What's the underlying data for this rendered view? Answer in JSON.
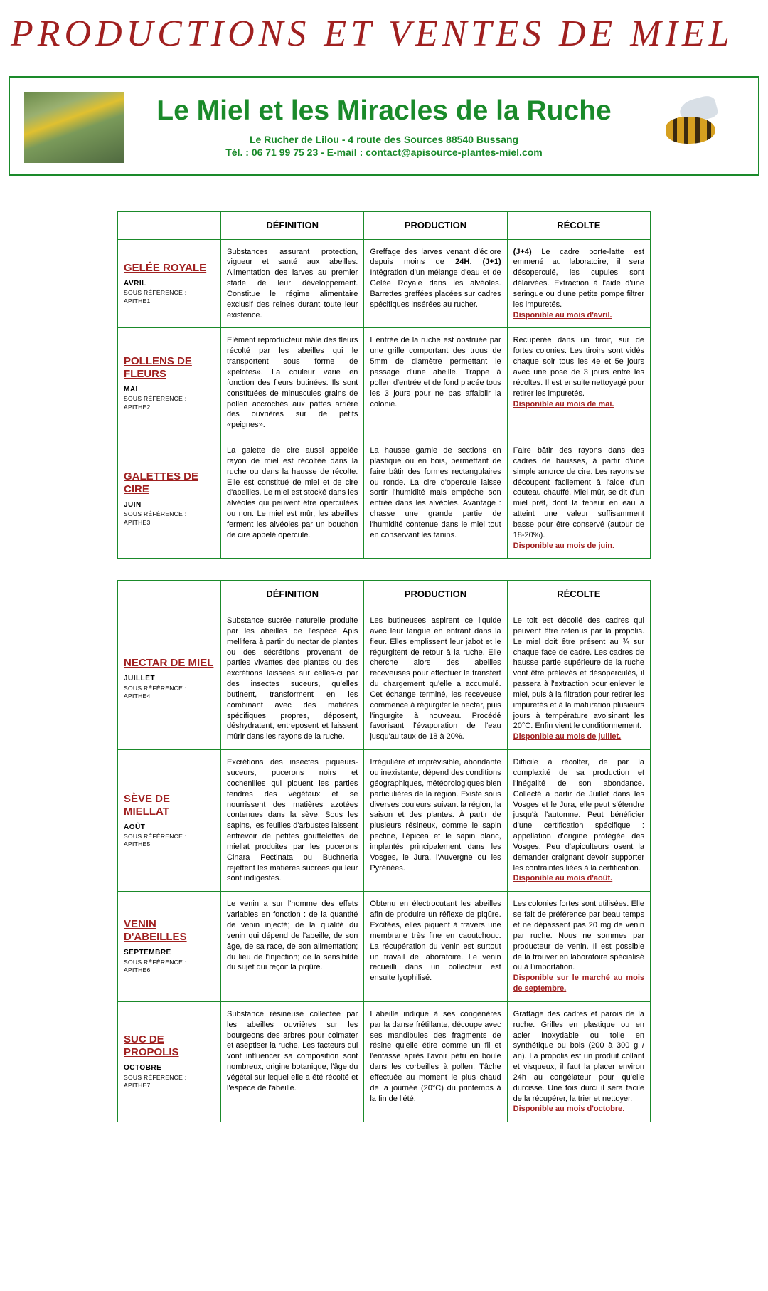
{
  "page": {
    "title": "PRODUCTIONS ET VENTES DE MIEL"
  },
  "banner": {
    "title": "Le Miel et les Miracles de la Ruche",
    "address": "Le Rucher de Lilou - 4 route des Sources 88540 Bussang",
    "tel_label": "Tél. : ",
    "tel": "06 71 99 75 23",
    "email_label": " - E-mail : ",
    "email": "contact@apisource-plantes-miel.com"
  },
  "colors": {
    "accent_green": "#1a8a2a",
    "accent_red": "#a02020"
  },
  "headers": {
    "definition": "DÉFINITION",
    "production": "PRODUCTION",
    "recolte": "RÉCOLTE"
  },
  "table1_rows": [
    {
      "name": "GELÉE ROYALE",
      "month": "AVRIL",
      "ref": "SOUS RÉFÉRENCE : APITHE1",
      "definition": "Substances assurant protection, vigueur et santé aux abeilles. Alimentation des larves au premier stade de leur développement. Constitue le régime alimentaire exclusif des reines durant toute leur existence.",
      "production": "Greffage des larves venant d'éclore depuis moins de <b>24H</b>. <b>(J+1)</b> Intégration d'un mélange d'eau et de Gelée Royale dans les alvéoles. Barrettes greffées placées sur cadres spécifiques insérées au rucher.",
      "recolte": "<b>(J+4)</b> Le cadre porte-latte est emmené au laboratoire, il sera désoperculé, les cupules sont délarvées. Extraction à l'aide d'une seringue ou d'une petite pompe filtrer les impuretés.",
      "avail": "Disponible au mois d'avril."
    },
    {
      "name": "POLLENS DE FLEURS",
      "month": "MAI",
      "ref": "SOUS RÉFÉRENCE : APITHE2",
      "definition": "Elément reproducteur mâle des fleurs récolté par les abeilles qui le transportent sous forme de «pelotes». La couleur varie en fonction des fleurs butinées. Ils sont constituées de minuscules grains de pollen accrochés aux pattes arrière des ouvrières sur de petits «peignes».",
      "production": "L'entrée de la ruche est obstruée par une grille comportant des trous de 5mm de diamètre permettant le passage d'une abeille. Trappe à pollen d'entrée et de fond placée tous les 3 jours pour ne pas affaiblir la colonie.",
      "recolte": "Récupérée dans un tiroir, sur de fortes colonies. Les tiroirs sont vidés chaque soir tous les 4e et 5e jours avec une pose de 3 jours entre les récoltes. Il est ensuite nettoyagé pour retirer les impuretés.",
      "avail": "Disponible au mois de mai."
    },
    {
      "name": "GALETTES DE CIRE",
      "month": "JUIN",
      "ref": "SOUS RÉFÉRENCE : APITHE3",
      "definition": "La galette de cire aussi appelée rayon de miel est récoltée dans la ruche ou dans la hausse de récolte. Elle est constitué de miel et de cire d'abeilles. Le miel est stocké dans les alvéoles qui peuvent être operculées ou non. Le miel est mûr, les abeilles ferment les alvéoles par un bouchon de cire appelé opercule.",
      "production": "La hausse garnie de sections en plastique ou en bois, permettant de faire bâtir des formes rectangulaires ou ronde. La cire d'opercule laisse sortir l'humidité mais empêche son entrée dans les alvéoles. Avantage : chasse une grande partie de l'humidité contenue dans le miel tout en conservant les tanins.",
      "recolte": "Faire bâtir des rayons dans des cadres de hausses, à partir d'une simple amorce de cire. Les rayons se découpent facilement à l'aide d'un couteau chauffé. Miel mûr, se dit d'un miel prêt, dont la teneur en eau a atteint une valeur suffisamment basse pour être conservé (autour de 18-20%).",
      "avail": "Disponible au mois de juin."
    }
  ],
  "table2_rows": [
    {
      "name": "NECTAR DE MIEL",
      "month": "JUILLET",
      "ref": "SOUS RÉFÉRENCE : APITHE4",
      "definition": "Substance sucrée naturelle produite par les abeilles de l'espèce Apis mellifera à partir du nectar de plantes ou des sécrétions provenant de parties vivantes des plantes ou des excrétions laissées sur celles-ci par des insectes suceurs, qu'elles butinent, transforment en les combinant avec des matières spécifiques propres, déposent, déshydratent, entreposent et laissent mûrir dans les rayons de la ruche.",
      "production": "Les butineuses aspirent ce liquide avec leur langue en entrant dans la fleur. Elles emplissent leur jabot et le régurgitent de retour à la ruche. Elle cherche alors des abeilles receveuses pour effectuer le transfert du chargement qu'elle a accumulé. Cet échange terminé, les receveuse commence à régurgiter le nectar, puis l'ingurgite à nouveau. Procédé favorisant l'évaporation de l'eau jusqu'au taux de 18 à 20%.",
      "recolte": "Le toit est décollé des cadres qui peuvent être retenus par la propolis. Le miel doit être présent au ¾ sur chaque face de cadre. Les cadres de hausse partie supérieure de la ruche vont être prélevés et désoperculés, il passera à l'extraction pour enlever le miel, puis à la filtration pour retirer les impuretés et à la maturation plusieurs jours à température avoisinant les 20°C. Enfin vient le conditionnement.",
      "avail": "Disponible au mois de juillet."
    },
    {
      "name": "SÈVE DE MIELLAT",
      "month": "AOÛT",
      "ref": "SOUS RÉFÉRENCE : APITHE5",
      "definition": "Excrétions des insectes piqueurs-suceurs, pucerons noirs et cochenilles qui piquent les parties tendres des végétaux et se nourrissent des matières azotées contenues dans la sève. Sous les sapins, les feuilles d'arbustes laissent entrevoir de petites gouttelettes de miellat produites par les pucerons Cinara Pectinata ou Buchneria rejettent les matières sucrées qui leur sont indigestes.",
      "production": "Irrégulière et imprévisible, abondante ou inexistante, dépend des conditions géographiques, météorologiques bien particulières de la région. Existe sous diverses couleurs suivant la région, la saison et des plantes. À partir de plusieurs résineux, comme le sapin pectiné, l'épicéa et le sapin blanc, implantés principalement dans les Vosges, le Jura, l'Auvergne ou les Pyrénées.",
      "recolte": "Difficile à récolter, de par la complexité de sa production et l'inégalité de son abondance. Collecté à partir de Juillet dans les Vosges et le Jura, elle peut s'étendre jusqu'à l'automne. Peut bénéficier d'une certification spécifique : appellation d'origine protégée des Vosges. Peu d'apiculteurs osent la demander craignant devoir supporter les contraintes liées à la certification.",
      "avail": "Disponible au mois d'août."
    },
    {
      "name": "VENIN D'ABEILLES",
      "month": "SEPTEMBRE",
      "ref": "SOUS RÉFÉRENCE : APITHE6",
      "definition": "Le venin a sur l'homme des effets variables en fonction : de la quantité de venin injecté; de la qualité du venin qui dépend de l'abeille, de son âge, de sa race, de son alimentation; du lieu de l'injection; de la sensibilité du sujet qui reçoit la piqûre.",
      "production": "Obtenu en électrocutant les abeilles afin de produire un réflexe de piqûre. Excitées, elles piquent à travers une membrane très fine en caoutchouc. La récupération du venin est surtout un travail de laboratoire. Le venin recueilli dans un collecteur est ensuite lyophilisé.",
      "recolte": "Les colonies fortes sont utilisées. Elle se fait de préférence par beau temps et ne dépassent pas 20 mg de venin par ruche. Nous ne sommes par producteur de venin. Il est possible de la trouver en laboratoire spécialisé ou à l'importation.",
      "avail": "Disponible sur le marché au mois de septembre."
    },
    {
      "name": "SUC DE PROPOLIS",
      "month": "OCTOBRE",
      "ref": "SOUS RÉFÉRENCE : APITHE7",
      "definition": "Substance résineuse collectée par les abeilles ouvrières sur les bourgeons des arbres pour colmater et aseptiser la ruche. Les facteurs qui vont influencer sa composition sont nombreux, origine botanique, l'âge du végétal sur lequel elle a été récolté et l'espèce de l'abeille.",
      "production": "L'abeille indique à ses congénères par la danse frétillante, découpe avec ses mandibules des fragments de résine qu'elle étire comme un fil et l'entasse après l'avoir pétri en boule dans les corbeilles à pollen. Tâche effectuée au moment le plus chaud de la journée (20°C) du printemps à la fin de l'été.",
      "recolte": "Grattage des cadres et parois de la ruche. Grilles en plastique ou en acier inoxydable ou toile en synthétique ou bois (200 à 300 g / an). La propolis est un produit collant et visqueux, il faut la placer environ 24h au congélateur pour qu'elle durcisse. Une fois durci il sera facile de la récupérer, la trier et nettoyer.",
      "avail": "Disponible au mois d'octobre."
    }
  ]
}
